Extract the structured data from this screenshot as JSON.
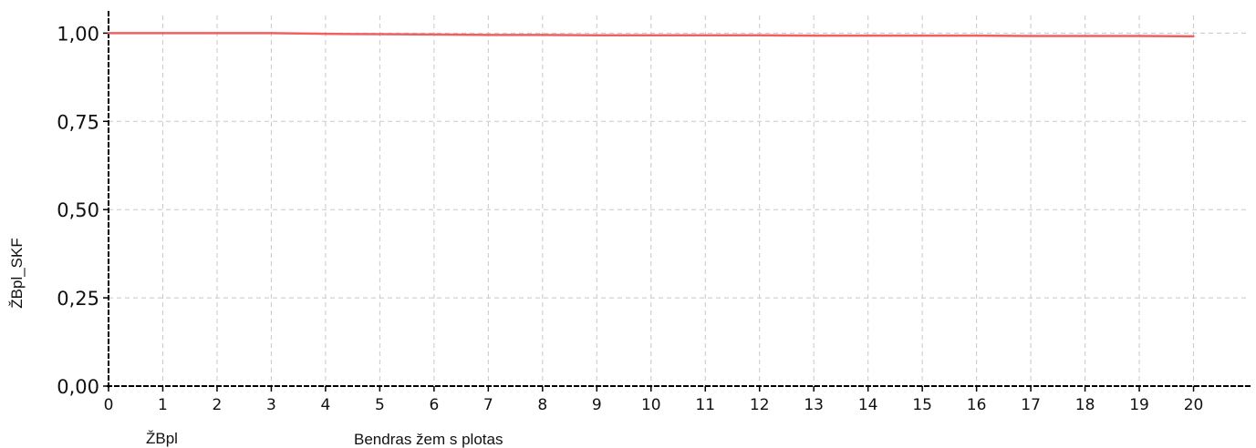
{
  "chart_data": {
    "type": "line",
    "title": "",
    "xlabel": "Bendras žem  s plotas",
    "x_sublabel": "ŽBpl",
    "ylabel": "ŽBpl_SKF",
    "x": [
      0,
      1,
      2,
      3,
      4,
      5,
      6,
      7,
      8,
      9,
      10,
      11,
      12,
      13,
      14,
      15,
      16,
      17,
      18,
      19,
      20
    ],
    "series": [
      {
        "values": [
          1.0,
          1.0,
          1.0,
          1.0,
          0.998,
          0.997,
          0.996,
          0.995,
          0.995,
          0.994,
          0.994,
          0.994,
          0.994,
          0.993,
          0.993,
          0.993,
          0.993,
          0.992,
          0.992,
          0.992,
          0.991
        ],
        "color": "#f06060"
      }
    ],
    "xlim": [
      0,
      21
    ],
    "ylim": [
      0,
      1.05
    ],
    "x_ticks": [
      0,
      1,
      2,
      3,
      4,
      5,
      6,
      7,
      8,
      9,
      10,
      11,
      12,
      13,
      14,
      15,
      16,
      17,
      18,
      19,
      20
    ],
    "x_tick_labels": [
      "0",
      "1",
      "2",
      "3",
      "4",
      "5",
      "6",
      "7",
      "8",
      "9",
      "10",
      "11",
      "12",
      "13",
      "14",
      "15",
      "16",
      "17",
      "18",
      "19",
      "20"
    ],
    "y_ticks": [
      0,
      0.25,
      0.5,
      0.75,
      1.0
    ],
    "y_tick_labels": [
      "0,00",
      "0,25",
      "0,50",
      "0,75",
      "1,00"
    ],
    "grid": true,
    "legend": "none"
  }
}
